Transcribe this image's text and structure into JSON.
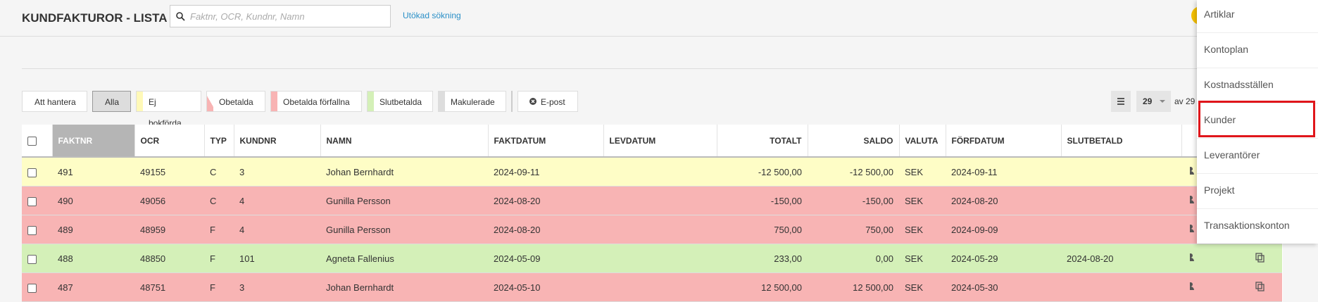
{
  "header": {
    "title": "KUNDFAKTUROR - LISTA",
    "search_placeholder": "Faktnr, OCR, Kundnr, Namn",
    "advanced_search": "Utökad sökning"
  },
  "filters": [
    "Att hantera",
    "Alla",
    "Ej bokförda",
    "Obetalda",
    "Obetalda förfallna",
    "Slutbetalda",
    "Makulerade"
  ],
  "email_button": "E-post",
  "pagination": {
    "page_size": "29",
    "total": "av 29"
  },
  "table": {
    "columns": [
      "FAKTNR",
      "OCR",
      "TYP",
      "KUNDNR",
      "NAMN",
      "FAKTDATUM",
      "LEVDATUM",
      "TOTALT",
      "SALDO",
      "VALUTA",
      "FÖRFDATUM",
      "SLUTBETALD"
    ],
    "rows": [
      [
        "491",
        "49155",
        "C",
        "3",
        "Johan Bernhardt",
        "2024-09-11",
        null,
        "-12 500,00",
        "-12 500,00",
        "SEK",
        "2024-09-11",
        null
      ],
      [
        "490",
        "49056",
        "C",
        "4",
        "Gunilla Persson",
        "2024-08-20",
        null,
        "-150,00",
        "-150,00",
        "SEK",
        "2024-08-20",
        null
      ],
      [
        "489",
        "48959",
        "F",
        "4",
        "Gunilla Persson",
        "2024-08-20",
        null,
        "750,00",
        "750,00",
        "SEK",
        "2024-09-09",
        null
      ],
      [
        "488",
        "48850",
        "F",
        "101",
        "Agneta Fallenius",
        "2024-05-09",
        null,
        "233,00",
        "0,00",
        "SEK",
        "2024-05-29",
        "2024-08-20"
      ],
      [
        "487",
        "48751",
        "F",
        "3",
        "Johan Bernhardt",
        "2024-05-10",
        null,
        "12 500,00",
        "12 500,00",
        "SEK",
        "2024-05-30",
        null
      ]
    ]
  },
  "menu": [
    "Artiklar",
    "Kontoplan",
    "Kostnadsställen",
    "Kunder",
    "Leverantörer",
    "Projekt",
    "Transaktionskonton"
  ]
}
